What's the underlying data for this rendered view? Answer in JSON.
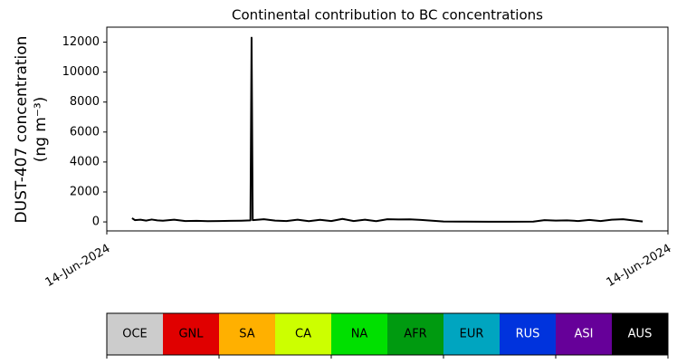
{
  "chart_data": {
    "type": "line",
    "title": "Continental contribution to BC concentrations",
    "ylabel": [
      "DUST-407 concentration",
      "(ng m⁻³)"
    ],
    "xlim": [
      0,
      100
    ],
    "xticks": [
      {
        "value": 0,
        "label": "14-Jun-2024"
      },
      {
        "value": 100,
        "label": "14-Jun-2024"
      }
    ],
    "ylim": [
      -600,
      13000
    ],
    "yticks": [
      0,
      2000,
      4000,
      6000,
      8000,
      10000,
      12000
    ],
    "series": [
      {
        "color": "#000000",
        "x": [
          4.5,
          5,
          6,
          7,
          8,
          9,
          10,
          12,
          14,
          16,
          18,
          20,
          22,
          24,
          25.6,
          25.8,
          26,
          28,
          30,
          32,
          34,
          36,
          38,
          40,
          42,
          44,
          46,
          48,
          50,
          52,
          54,
          56,
          58,
          60,
          64,
          68,
          72,
          76,
          78,
          80,
          82,
          84,
          86,
          88,
          90,
          92,
          95.5
        ],
        "values": [
          250,
          120,
          150,
          90,
          160,
          100,
          80,
          150,
          60,
          70,
          50,
          60,
          70,
          80,
          100,
          12300,
          120,
          180,
          90,
          60,
          150,
          50,
          140,
          60,
          200,
          60,
          150,
          50,
          180,
          160,
          170,
          130,
          80,
          30,
          20,
          10,
          10,
          20,
          120,
          90,
          100,
          60,
          130,
          60,
          150,
          180,
          30
        ]
      }
    ],
    "colorbar": {
      "labels": [
        "OCE",
        "GNL",
        "SA",
        "CA",
        "NA",
        "AFR",
        "EUR",
        "RUS",
        "ASI",
        "AUS"
      ],
      "colors": [
        "#cccccc",
        "#e00000",
        "#ffb000",
        "#ccff00",
        "#00e000",
        "#009a10",
        "#00a5c0",
        "#0033dd",
        "#660099",
        "#000000"
      ]
    }
  }
}
